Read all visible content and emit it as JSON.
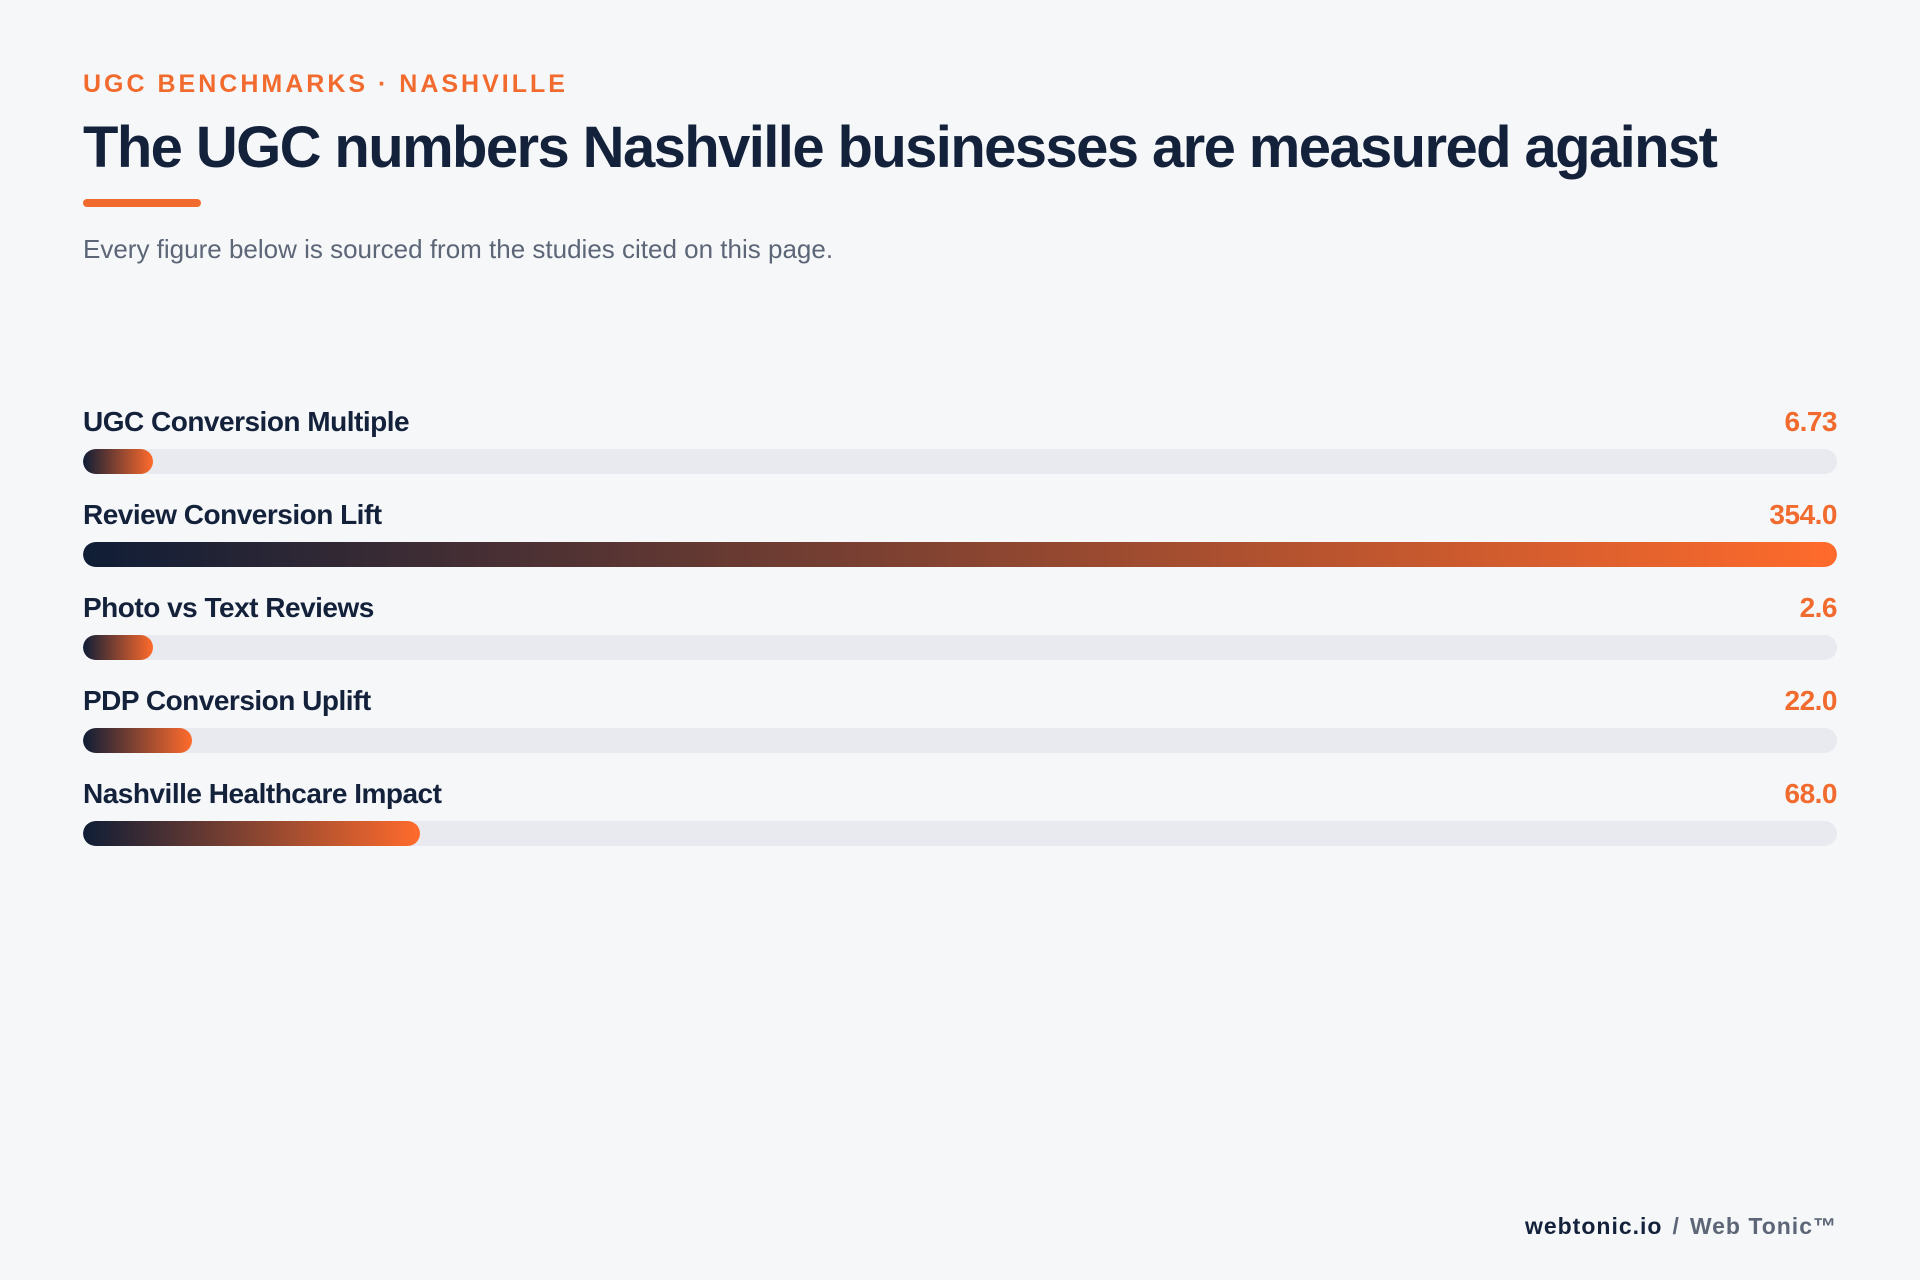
{
  "header": {
    "eyebrow": "UGC BENCHMARKS · NASHVILLE",
    "title": "The UGC numbers Nashville businesses are measured against",
    "subtitle": "Every figure below is sourced from the studies cited on this page."
  },
  "chart_data": {
    "type": "bar",
    "orientation": "horizontal",
    "categories": [
      "UGC Conversion Multiple",
      "Review Conversion Lift",
      "Photo vs Text Reviews",
      "PDP Conversion Uplift",
      "Nashville Healthcare Impact"
    ],
    "values": [
      6.73,
      354.0,
      2.6,
      22.0,
      68.0
    ],
    "value_labels": [
      "6.73",
      "354.0",
      "2.6",
      "22.0",
      "68.0"
    ],
    "xlim": [
      0,
      354.0
    ],
    "grid": false,
    "legend": "none"
  },
  "footer": {
    "domain": "webtonic.io",
    "separator": "/",
    "brand": "Web Tonic™"
  },
  "colors": {
    "accent": "#f26b2e",
    "navy": "#13213b",
    "track": "#e8eaf0",
    "background": "#f6f7f9"
  }
}
